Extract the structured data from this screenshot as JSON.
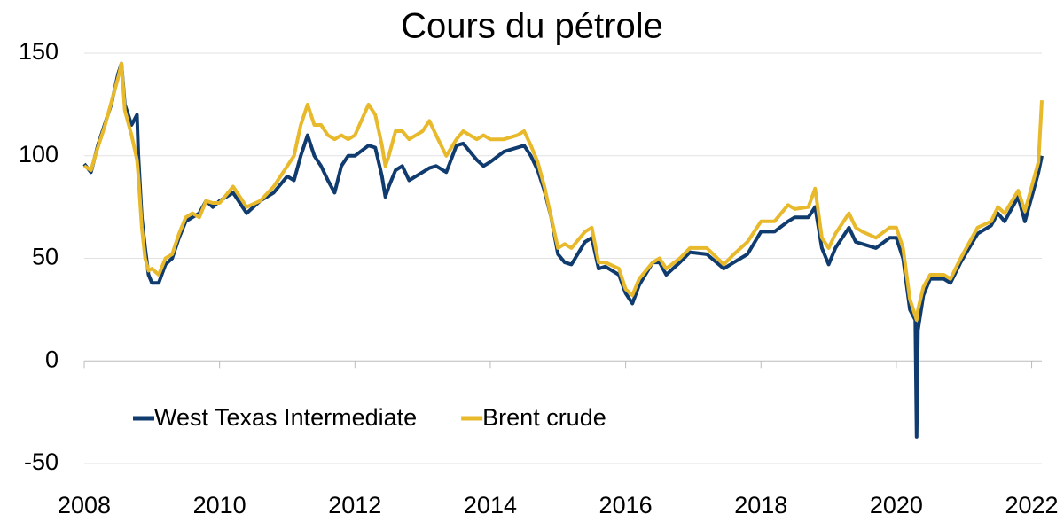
{
  "chart_data": {
    "type": "line",
    "title": "Cours du pétrole",
    "x": [
      2008.0,
      2008.1,
      2008.2,
      2008.3,
      2008.4,
      2008.5,
      2008.55,
      2008.6,
      2008.7,
      2008.78,
      2008.8,
      2008.85,
      2008.9,
      2008.95,
      2009.0,
      2009.1,
      2009.2,
      2009.3,
      2009.4,
      2009.5,
      2009.6,
      2009.7,
      2009.8,
      2009.9,
      2010.0,
      2010.2,
      2010.4,
      2010.6,
      2010.8,
      2011.0,
      2011.1,
      2011.2,
      2011.3,
      2011.4,
      2011.5,
      2011.6,
      2011.7,
      2011.8,
      2011.9,
      2012.0,
      2012.2,
      2012.3,
      2012.4,
      2012.45,
      2012.5,
      2012.6,
      2012.7,
      2012.8,
      2013.0,
      2013.1,
      2013.2,
      2013.35,
      2013.5,
      2013.6,
      2013.8,
      2013.9,
      2014.0,
      2014.2,
      2014.4,
      2014.5,
      2014.6,
      2014.7,
      2014.8,
      2014.9,
      2015.0,
      2015.1,
      2015.2,
      2015.4,
      2015.5,
      2015.6,
      2015.7,
      2015.9,
      2016.0,
      2016.1,
      2016.2,
      2016.4,
      2016.5,
      2016.6,
      2016.8,
      2016.95,
      2017.2,
      2017.45,
      2017.6,
      2017.8,
      2018.0,
      2018.2,
      2018.4,
      2018.5,
      2018.7,
      2018.8,
      2018.9,
      2019.0,
      2019.1,
      2019.3,
      2019.4,
      2019.5,
      2019.7,
      2019.9,
      2020.0,
      2020.1,
      2020.2,
      2020.28,
      2020.3,
      2020.32,
      2020.4,
      2020.5,
      2020.7,
      2020.8,
      2020.95,
      2021.2,
      2021.4,
      2021.5,
      2021.6,
      2021.8,
      2021.9,
      2022.0,
      2022.1,
      2022.15
    ],
    "series": [
      {
        "name": "West Texas Intermediate",
        "color": "#0f3b6e",
        "values": [
          96,
          92,
          105,
          115,
          125,
          140,
          145,
          125,
          115,
          120,
          100,
          70,
          55,
          42,
          38,
          38,
          47,
          50,
          60,
          68,
          70,
          72,
          78,
          75,
          78,
          82,
          72,
          78,
          82,
          90,
          88,
          100,
          110,
          100,
          95,
          88,
          82,
          95,
          100,
          100,
          105,
          104,
          90,
          80,
          85,
          93,
          95,
          88,
          92,
          94,
          95,
          92,
          105,
          106,
          98,
          95,
          97,
          102,
          104,
          105,
          100,
          93,
          83,
          70,
          52,
          48,
          47,
          58,
          60,
          45,
          46,
          42,
          33,
          28,
          37,
          48,
          48,
          42,
          48,
          53,
          52,
          45,
          48,
          52,
          63,
          63,
          68,
          70,
          70,
          75,
          55,
          47,
          55,
          65,
          58,
          57,
          55,
          60,
          60,
          50,
          25,
          20,
          -37,
          15,
          32,
          40,
          40,
          38,
          48,
          62,
          66,
          72,
          68,
          80,
          68,
          80,
          92,
          100
        ]
      },
      {
        "name": "Brent crude",
        "color": "#e8b92b",
        "values": [
          95,
          93,
          104,
          114,
          126,
          138,
          145,
          122,
          110,
          98,
          90,
          65,
          50,
          44,
          45,
          42,
          50,
          52,
          62,
          70,
          72,
          70,
          78,
          77,
          77,
          85,
          75,
          78,
          85,
          95,
          100,
          115,
          125,
          115,
          115,
          110,
          108,
          110,
          108,
          110,
          125,
          120,
          105,
          95,
          100,
          112,
          112,
          108,
          112,
          117,
          110,
          100,
          108,
          112,
          108,
          110,
          108,
          108,
          110,
          112,
          105,
          97,
          85,
          70,
          55,
          57,
          55,
          63,
          65,
          48,
          48,
          45,
          35,
          32,
          40,
          48,
          50,
          45,
          50,
          55,
          55,
          47,
          52,
          58,
          68,
          68,
          76,
          74,
          75,
          84,
          60,
          55,
          62,
          72,
          65,
          63,
          60,
          65,
          65,
          55,
          30,
          22,
          20,
          25,
          36,
          42,
          42,
          40,
          50,
          65,
          68,
          75,
          72,
          83,
          73,
          85,
          97,
          127
        ]
      }
    ],
    "xlim": [
      2008,
      2022.15
    ],
    "xticks": [
      2008,
      2010,
      2012,
      2014,
      2016,
      2018,
      2020,
      2022
    ],
    "ylim": [
      -50,
      150
    ],
    "yticks": [
      -50,
      0,
      50,
      100,
      150
    ],
    "grid": true
  }
}
